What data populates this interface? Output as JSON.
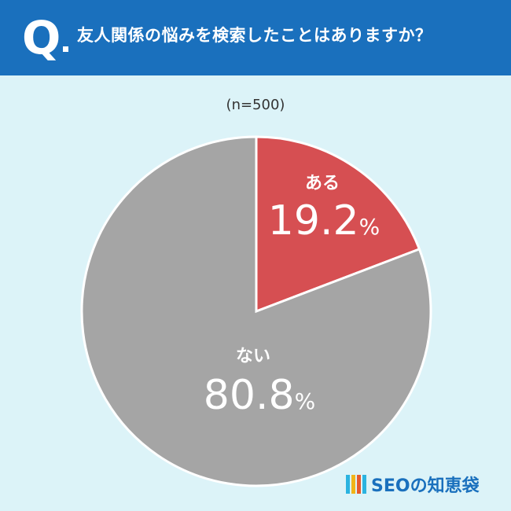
{
  "header": {
    "q_mark": "Q",
    "question": "友人関係の悩みを検索したことはありますか？"
  },
  "sample_size": "(n=500)",
  "brand": {
    "name": "SEOの知恵袋",
    "logo_colors": [
      "#2bb3e0",
      "#f1b418",
      "#e65a2d",
      "#2bb3e0"
    ]
  },
  "chart_data": {
    "type": "pie",
    "title": "友人関係の悩みを検索したことはありますか？",
    "subtitle": "(n=500)",
    "unit": "%",
    "start": "12 o'clock, clockwise",
    "slices": [
      {
        "label": "ある",
        "value": 19.2,
        "display": "19.2",
        "color": "#d64f52"
      },
      {
        "label": "ない",
        "value": 80.8,
        "display": "80.8",
        "color": "#a5a5a5"
      }
    ]
  }
}
